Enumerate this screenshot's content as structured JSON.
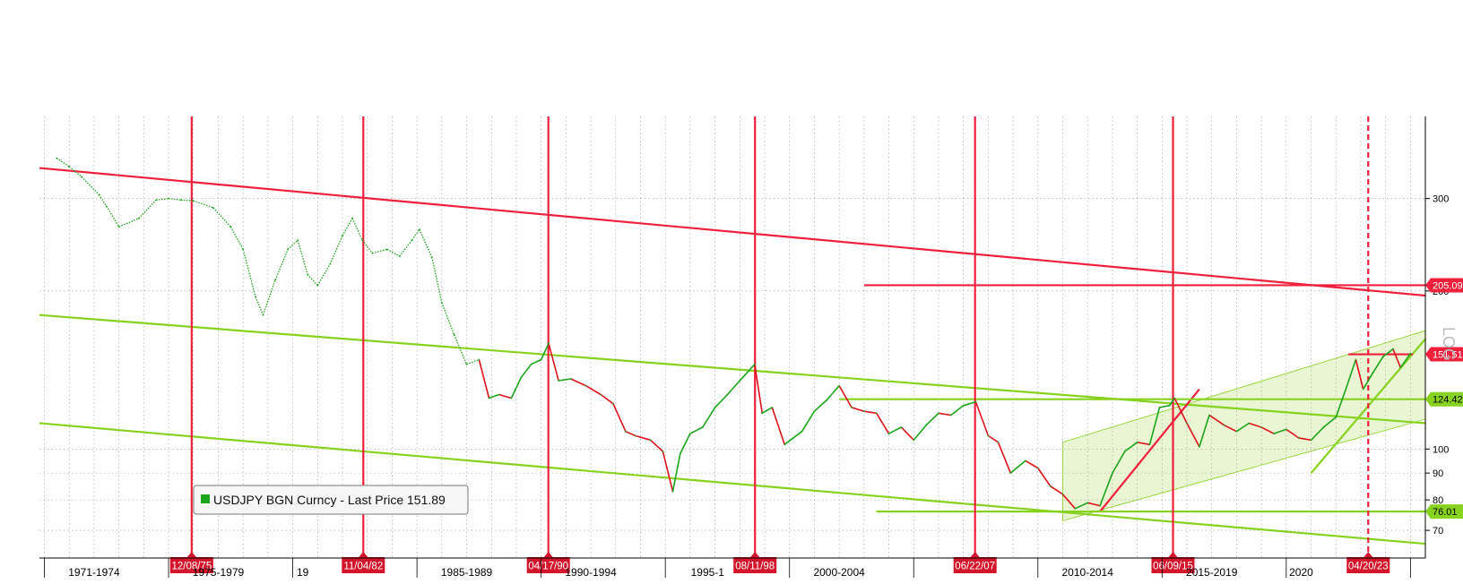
{
  "colors": {
    "background": "#ffffff",
    "grid": "#9a9a9a",
    "axis": "#000000",
    "price_green": "#1aa51a",
    "price_red": "#e0121a",
    "red_line": "#f0203c",
    "green_line": "#86d21e",
    "channel_fill": "#e3f2c4",
    "level_green": "#86d21e",
    "level_red": "#f0203c"
  },
  "chart_data": {
    "type": "line",
    "y_scale": "log",
    "ylim": [
      62,
      430
    ],
    "xlim": [
      1969.8,
      2025.6
    ],
    "grid": true,
    "legend_position": "bottom-left",
    "y_ticks": [
      70,
      80,
      90,
      100,
      200,
      300
    ],
    "x_period_labels": [
      {
        "label": "1971-1974",
        "x": 1972.0
      },
      {
        "label": "1975-1979",
        "x": 1977.0
      },
      {
        "label": "19",
        "x": 1980.4
      },
      {
        "label": "1985-1989",
        "x": 1987.0
      },
      {
        "label": "1990-1994",
        "x": 1992.0
      },
      {
        "label": "1995-1",
        "x": 1996.7
      },
      {
        "label": "2000-2004",
        "x": 2002.0
      },
      {
        "label": "2010-2014",
        "x": 2012.0
      },
      {
        "label": "2015-2019",
        "x": 2017.0
      },
      {
        "label": "2020",
        "x": 2020.6
      }
    ],
    "x_boundary_years": [
      1970,
      1975,
      1980,
      1985,
      1990,
      1995,
      2000,
      2005,
      2010,
      2015,
      2020,
      2025
    ],
    "series": [
      {
        "name": "USDJPY BGN Curncy - Last Price",
        "last_value": "151.89",
        "points": [
          [
            1970.5,
            358
          ],
          [
            1971.0,
            345
          ],
          [
            1971.5,
            330
          ],
          [
            1972.2,
            305
          ],
          [
            1972.5,
            290
          ],
          [
            1973.0,
            265
          ],
          [
            1973.8,
            275
          ],
          [
            1974.5,
            298
          ],
          [
            1975.0,
            300
          ],
          [
            1975.5,
            298
          ],
          [
            1976.0,
            297
          ],
          [
            1976.8,
            288
          ],
          [
            1977.5,
            265
          ],
          [
            1978.0,
            240
          ],
          [
            1978.5,
            195
          ],
          [
            1978.8,
            180
          ],
          [
            1979.3,
            210
          ],
          [
            1979.8,
            240
          ],
          [
            1980.2,
            250
          ],
          [
            1980.6,
            215
          ],
          [
            1981.0,
            205
          ],
          [
            1981.5,
            225
          ],
          [
            1982.0,
            255
          ],
          [
            1982.4,
            275
          ],
          [
            1982.8,
            250
          ],
          [
            1983.2,
            236
          ],
          [
            1983.8,
            240
          ],
          [
            1984.3,
            233
          ],
          [
            1984.8,
            250
          ],
          [
            1985.1,
            262
          ],
          [
            1985.6,
            232
          ],
          [
            1986.0,
            190
          ],
          [
            1986.5,
            165
          ],
          [
            1987.0,
            145
          ],
          [
            1987.5,
            148
          ],
          [
            1987.9,
            125
          ],
          [
            1988.3,
            127
          ],
          [
            1988.8,
            125
          ],
          [
            1989.2,
            137
          ],
          [
            1989.6,
            145
          ],
          [
            1990.0,
            148
          ],
          [
            1990.3,
            159
          ],
          [
            1990.7,
            135
          ],
          [
            1991.2,
            136
          ],
          [
            1991.8,
            132
          ],
          [
            1992.4,
            127
          ],
          [
            1992.9,
            122
          ],
          [
            1993.4,
            108
          ],
          [
            1993.8,
            106
          ],
          [
            1994.4,
            104
          ],
          [
            1994.9,
            99
          ],
          [
            1995.3,
            83
          ],
          [
            1995.6,
            98
          ],
          [
            1996.0,
            107
          ],
          [
            1996.5,
            110
          ],
          [
            1997.0,
            120
          ],
          [
            1997.5,
            127
          ],
          [
            1998.0,
            135
          ],
          [
            1998.6,
            145
          ],
          [
            1998.9,
            117
          ],
          [
            1999.3,
            120
          ],
          [
            1999.8,
            102
          ],
          [
            2000.5,
            108
          ],
          [
            2001.0,
            118
          ],
          [
            2001.5,
            124
          ],
          [
            2002.0,
            132
          ],
          [
            2002.5,
            120
          ],
          [
            2003.0,
            118
          ],
          [
            2003.5,
            117
          ],
          [
            2004.0,
            107
          ],
          [
            2004.5,
            110
          ],
          [
            2005.0,
            104
          ],
          [
            2005.5,
            111
          ],
          [
            2006.0,
            117
          ],
          [
            2006.5,
            116
          ],
          [
            2007.0,
            121
          ],
          [
            2007.5,
            123
          ],
          [
            2008.0,
            106
          ],
          [
            2008.4,
            103
          ],
          [
            2008.9,
            90
          ],
          [
            2009.5,
            95
          ],
          [
            2010.0,
            92
          ],
          [
            2010.5,
            85
          ],
          [
            2011.0,
            82
          ],
          [
            2011.5,
            77
          ],
          [
            2012.0,
            79
          ],
          [
            2012.5,
            78
          ],
          [
            2013.0,
            90
          ],
          [
            2013.5,
            99
          ],
          [
            2014.0,
            103
          ],
          [
            2014.5,
            102
          ],
          [
            2014.9,
            120
          ],
          [
            2015.3,
            121
          ],
          [
            2015.5,
            125
          ],
          [
            2016.0,
            112
          ],
          [
            2016.5,
            101
          ],
          [
            2016.9,
            116
          ],
          [
            2017.5,
            111
          ],
          [
            2018.0,
            108
          ],
          [
            2018.5,
            112
          ],
          [
            2019.0,
            110
          ],
          [
            2019.5,
            107
          ],
          [
            2020.0,
            109
          ],
          [
            2020.5,
            105
          ],
          [
            2021.0,
            104
          ],
          [
            2021.5,
            110
          ],
          [
            2022.0,
            115
          ],
          [
            2022.4,
            130
          ],
          [
            2022.8,
            148
          ],
          [
            2023.1,
            130
          ],
          [
            2023.5,
            140
          ],
          [
            2023.9,
            150
          ],
          [
            2024.3,
            155
          ],
          [
            2024.6,
            143
          ],
          [
            2025.0,
            152
          ]
        ]
      }
    ],
    "event_lines": [
      {
        "label": "12/08/75",
        "x": 1975.93
      },
      {
        "label": "11/04/82",
        "x": 1982.84
      },
      {
        "label": "04/17/90",
        "x": 1990.29
      },
      {
        "label": "08/11/98",
        "x": 1998.61
      },
      {
        "label": "06/22/07",
        "x": 2007.47
      },
      {
        "label": "06/09/15",
        "x": 2015.44
      },
      {
        "label": "04/20/23",
        "x": 2023.3,
        "dashed": true
      }
    ],
    "trend_lines": [
      {
        "color": "red",
        "from": [
          1969.8,
          343
        ],
        "to": [
          2025.6,
          196
        ]
      },
      {
        "color": "green",
        "from": [
          1969.8,
          180
        ],
        "to": [
          2025.6,
          112
        ]
      },
      {
        "color": "green",
        "from": [
          1969.8,
          112
        ],
        "to": [
          2025.6,
          66
        ]
      },
      {
        "color": "red",
        "from": [
          2012.5,
          76
        ],
        "to": [
          2016.5,
          130
        ]
      },
      {
        "color": "green",
        "from": [
          2021.0,
          90
        ],
        "to": [
          2025.6,
          162
        ]
      },
      {
        "color": "green",
        "from": [
          2002.0,
          124.42
        ],
        "to": [
          2025.6,
          124.42
        ]
      },
      {
        "color": "green",
        "from": [
          2003.5,
          76.01
        ],
        "to": [
          2025.6,
          76.01
        ]
      },
      {
        "color": "red",
        "from": [
          2003.0,
          205.09
        ],
        "to": [
          2025.6,
          205.09
        ]
      },
      {
        "color": "red",
        "from": [
          2022.5,
          151.51
        ],
        "to": [
          2025.1,
          151.51
        ]
      }
    ],
    "channel": {
      "x_start": 2011.0,
      "x_end": 2025.6,
      "lower_start": 73,
      "lower_end": 114,
      "upper_start": 103,
      "upper_end": 168
    },
    "levels": [
      {
        "label": "205.09",
        "value": 205.09,
        "color": "red"
      },
      {
        "label": "151.51",
        "value": 151.51,
        "color": "red"
      },
      {
        "label": "124.42",
        "value": 124.42,
        "color": "green"
      },
      {
        "label": "76.01",
        "value": 76.01,
        "color": "green"
      }
    ],
    "scale_label": "LOG",
    "legend": {
      "label": "USDJPY BGN Curncy - Last Price 151.89"
    }
  }
}
